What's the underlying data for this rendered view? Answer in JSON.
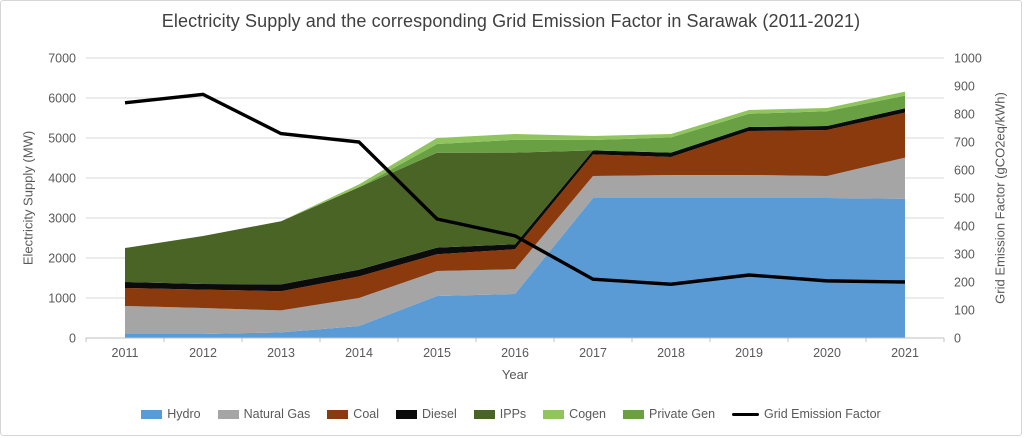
{
  "chart_data": {
    "type": "area",
    "subtype": "stacked-area-with-line-combo",
    "title": "Electricity Supply and the corresponding Grid Emission Factor in Sarawak (2011-2021)",
    "x_label": "Year",
    "categories": [
      "2011",
      "2012",
      "2013",
      "2014",
      "2015",
      "2016",
      "2017",
      "2018",
      "2019",
      "2020",
      "2021"
    ],
    "y_left": {
      "label": "Electricity Supply (MW)",
      "min": 0,
      "max": 7000,
      "step": 1000
    },
    "y_right": {
      "label": "Grid Emission Factor (gCO2eq/kWh)",
      "min": 0,
      "max": 1000,
      "step": 100
    },
    "grid": "horizontal",
    "legend_position": "bottom",
    "series": [
      {
        "name": "Hydro",
        "color": "#5B9BD5",
        "values": [
          100,
          100,
          140,
          300,
          1050,
          1100,
          3500,
          3500,
          3500,
          3500,
          3480
        ]
      },
      {
        "name": "Natural Gas",
        "color": "#A5A5A5",
        "values": [
          700,
          650,
          550,
          700,
          625,
          620,
          550,
          575,
          575,
          550,
          1030
        ]
      },
      {
        "name": "Coal",
        "color": "#8B3A0E",
        "values": [
          450,
          460,
          480,
          540,
          420,
          500,
          540,
          450,
          1100,
          1150,
          1125
        ]
      },
      {
        "name": "Diesel",
        "color": "#0B0B0B",
        "values": [
          150,
          140,
          170,
          170,
          165,
          125,
          100,
          110,
          100,
          100,
          110
        ]
      },
      {
        "name": "IPPs",
        "color": "#4A6426",
        "values": [
          850,
          1200,
          1580,
          2060,
          2370,
          2290,
          0,
          0,
          0,
          0,
          0
        ]
      },
      {
        "name": "Cogen",
        "color": "#90C45E",
        "values": [
          0,
          0,
          0,
          70,
          150,
          145,
          100,
          85,
          95,
          80,
          100
        ]
      },
      {
        "name": "Private Gen",
        "color": "#69A044",
        "values": [
          0,
          0,
          0,
          0,
          220,
          320,
          260,
          380,
          330,
          370,
          315
        ]
      }
    ],
    "stack_order": [
      "Hydro",
      "Natural Gas",
      "Coal",
      "Diesel",
      "IPPs",
      "Private Gen",
      "Cogen"
    ],
    "line": {
      "name": "Grid Emission Factor",
      "color": "#000000",
      "axis": "right",
      "values": [
        840,
        870,
        730,
        700,
        425,
        365,
        210,
        192,
        225,
        204,
        200
      ]
    },
    "legend": [
      {
        "label": "Hydro",
        "swatch": "rect"
      },
      {
        "label": "Natural Gas",
        "swatch": "rect"
      },
      {
        "label": "Coal",
        "swatch": "rect"
      },
      {
        "label": "Diesel",
        "swatch": "rect"
      },
      {
        "label": "IPPs",
        "swatch": "rect"
      },
      {
        "label": "Cogen",
        "swatch": "rect"
      },
      {
        "label": "Private Gen",
        "swatch": "rect"
      },
      {
        "label": "Grid Emission Factor",
        "swatch": "line"
      }
    ],
    "colors": {
      "grid": "#D9D9D9",
      "axis": "#BFBFBF",
      "text": "#595959",
      "title_text": "#404040"
    }
  }
}
